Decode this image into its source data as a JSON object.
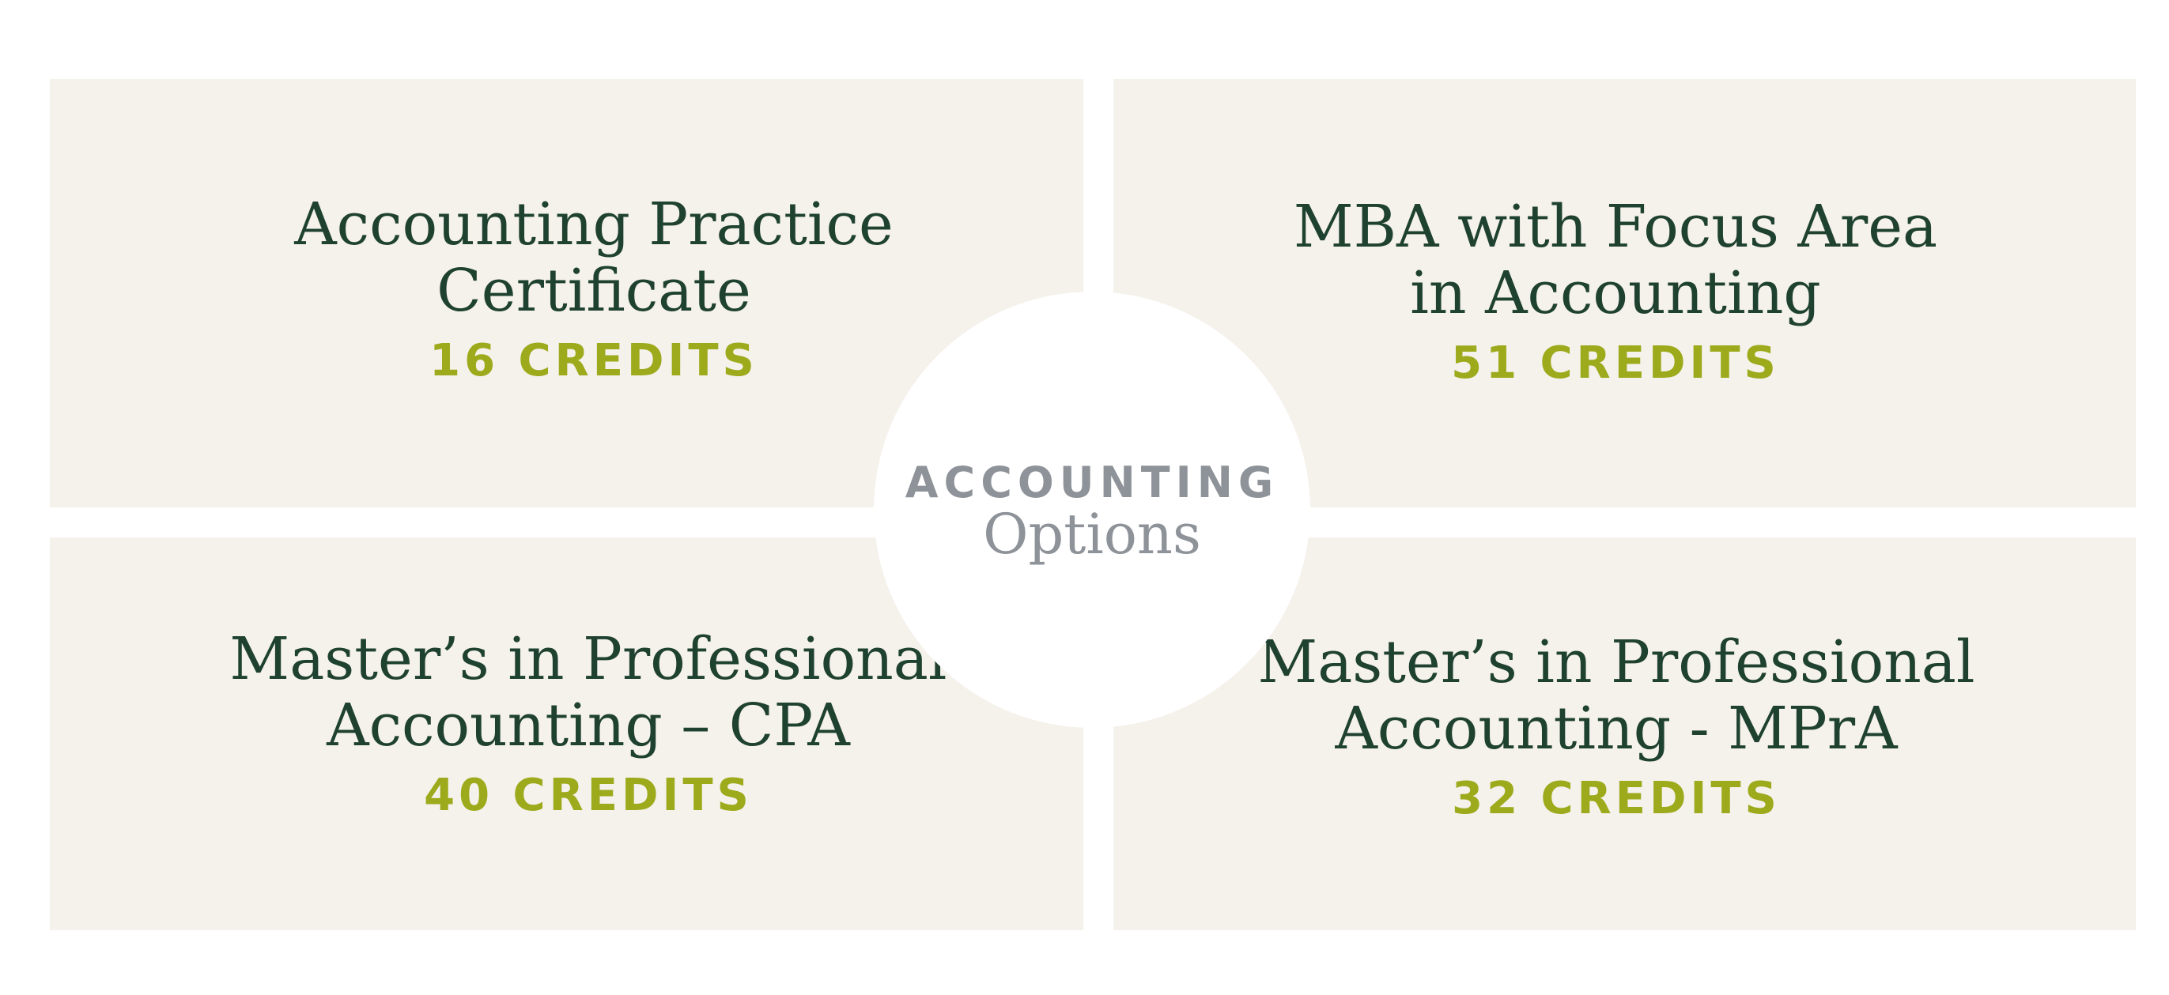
{
  "center": {
    "line1": "ACCOUNTING",
    "line2": "Options"
  },
  "options": [
    {
      "title_lines": [
        "Accounting Practice",
        "Certificate"
      ],
      "credits": "16 CREDITS"
    },
    {
      "title_lines": [
        "MBA with Focus Area",
        "in Accounting"
      ],
      "credits": "51 CREDITS"
    },
    {
      "title_lines": [
        "Master’s in Professional",
        "Accounting – CPA"
      ],
      "credits": "40 CREDITS"
    },
    {
      "title_lines": [
        "Master’s in Professional",
        "Accounting - MPrA"
      ],
      "credits": "32 CREDITS"
    }
  ],
  "colors": {
    "panel_background": "#f5f1eb",
    "title": "#1f4230",
    "credits": "#9caa1b",
    "center_text": "#8e9399"
  }
}
